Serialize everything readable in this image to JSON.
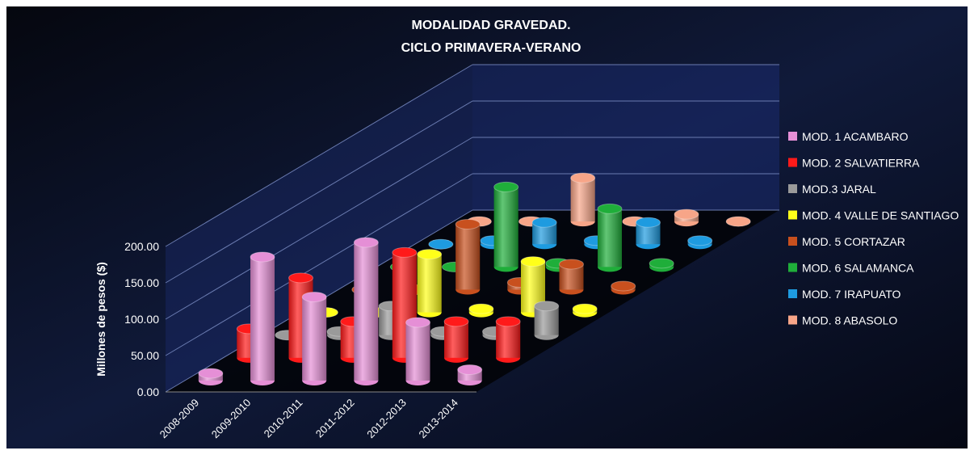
{
  "chart_data": {
    "type": "bar3d",
    "title": "MODALIDAD GRAVEDAD.",
    "subtitle": "CICLO PRIMAVERA-VERANO",
    "y_label": "Millones de pesos ($)",
    "categories": [
      "2008-2009",
      "2009-2010",
      "2010-2011",
      "2011-2012",
      "2012-2013",
      "2013-2014"
    ],
    "ylim": [
      0,
      200
    ],
    "yticks": [
      {
        "value": 0,
        "label": "0.00"
      },
      {
        "value": 50,
        "label": "50.00"
      },
      {
        "value": 100,
        "label": "100.00"
      },
      {
        "value": 150,
        "label": "150.00"
      },
      {
        "value": 200,
        "label": "200.00"
      }
    ],
    "grid": true,
    "legend": "right",
    "series": [
      {
        "name": "MOD. 1 ACAMBARO",
        "color": "#e58fd6",
        "values": [
          10,
          170,
          115,
          190,
          80,
          15
        ]
      },
      {
        "name": "MOD. 2 SALVATIERRA",
        "color": "#ff1a1a",
        "values": [
          40,
          110,
          50,
          145,
          50,
          50
        ]
      },
      {
        "name": "MOD.3 JARAL",
        "color": "#9a9a9a",
        "values": [
          0,
          5,
          40,
          5,
          5,
          40
        ]
      },
      {
        "name": "MOD. 4  VALLE DE SANTIAGO",
        "color": "#ffff1a",
        "values": [
          0,
          0,
          80,
          5,
          70,
          5
        ]
      },
      {
        "name": "MOD. 5 CORTAZAR",
        "color": "#c8501e",
        "values": [
          0,
          0,
          90,
          10,
          35,
          5
        ]
      },
      {
        "name": "MOD. 6 SALAMANCA",
        "color": "#1fae3a",
        "values": [
          0,
          0,
          110,
          5,
          80,
          5
        ]
      },
      {
        "name": "MOD. 7 IRAPUATO",
        "color": "#1e9be0",
        "values": [
          0,
          5,
          30,
          5,
          30,
          5
        ]
      },
      {
        "name": "MOD. 8 ABASOLO",
        "color": "#f7a588",
        "values": [
          0,
          0,
          60,
          0,
          10,
          0
        ]
      }
    ]
  }
}
